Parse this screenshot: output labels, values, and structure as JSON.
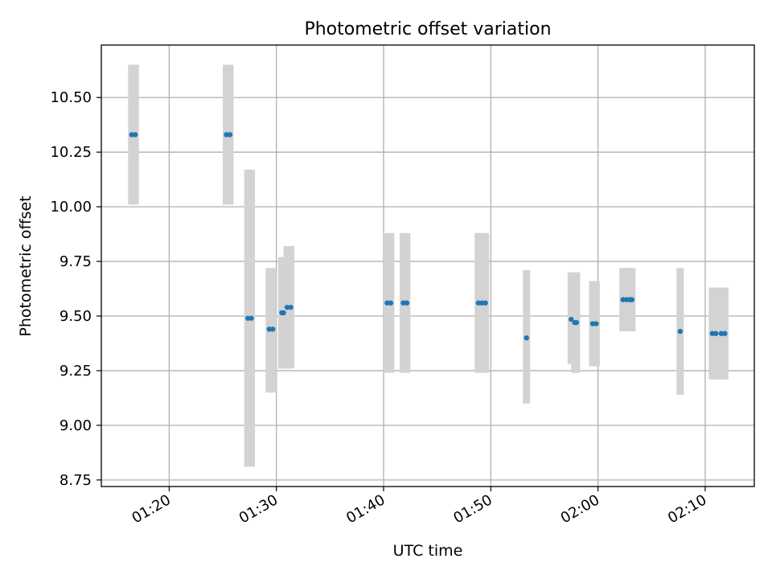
{
  "chart_data": {
    "type": "scatter",
    "title": "Photometric offset variation",
    "xlabel": "UTC time",
    "ylabel": "Photometric offset",
    "xlim": [
      "01:13:40",
      "02:14:35"
    ],
    "ylim": [
      8.72,
      10.74
    ],
    "grid": true,
    "xticks": [
      {
        "time": "01:20:00",
        "label": "01:20"
      },
      {
        "time": "01:30:00",
        "label": "01:30"
      },
      {
        "time": "01:40:00",
        "label": "01:40"
      },
      {
        "time": "01:50:00",
        "label": "01:50"
      },
      {
        "time": "02:00:00",
        "label": "02:00"
      },
      {
        "time": "02:10:00",
        "label": "02:10"
      }
    ],
    "yticks": [
      {
        "value": 8.75,
        "label": "8.75"
      },
      {
        "value": 9.0,
        "label": "9.00"
      },
      {
        "value": 9.25,
        "label": "9.25"
      },
      {
        "value": 9.5,
        "label": "9.50"
      },
      {
        "value": 9.75,
        "label": "9.75"
      },
      {
        "value": 10.0,
        "label": "10.00"
      },
      {
        "value": 10.25,
        "label": "10.25"
      },
      {
        "value": 10.5,
        "label": "10.50"
      }
    ],
    "colors": {
      "point": "#1f77b4",
      "errorbar": "#d3d3d3",
      "grid": "#b0b0b0",
      "axes": "#000000"
    },
    "points": [
      {
        "time": "01:16:30",
        "y": 10.33,
        "ylow": 10.01,
        "yhigh": 10.65
      },
      {
        "time": "01:16:50",
        "y": 10.33,
        "ylow": 10.01,
        "yhigh": 10.65
      },
      {
        "time": "01:25:20",
        "y": 10.33,
        "ylow": 10.01,
        "yhigh": 10.65
      },
      {
        "time": "01:25:40",
        "y": 10.33,
        "ylow": 10.01,
        "yhigh": 10.65
      },
      {
        "time": "01:27:20",
        "y": 9.49,
        "ylow": 8.81,
        "yhigh": 10.17
      },
      {
        "time": "01:27:40",
        "y": 9.49,
        "ylow": 8.81,
        "yhigh": 10.17
      },
      {
        "time": "01:29:20",
        "y": 9.44,
        "ylow": 9.15,
        "yhigh": 9.72
      },
      {
        "time": "01:29:40",
        "y": 9.44,
        "ylow": 9.15,
        "yhigh": 9.72
      },
      {
        "time": "01:30:30",
        "y": 9.515,
        "ylow": 9.26,
        "yhigh": 9.77
      },
      {
        "time": "01:30:40",
        "y": 9.515,
        "ylow": 9.26,
        "yhigh": 9.77
      },
      {
        "time": "01:31:00",
        "y": 9.54,
        "ylow": 9.26,
        "yhigh": 9.82
      },
      {
        "time": "01:31:20",
        "y": 9.54,
        "ylow": 9.26,
        "yhigh": 9.82
      },
      {
        "time": "01:40:20",
        "y": 9.56,
        "ylow": 9.24,
        "yhigh": 9.88
      },
      {
        "time": "01:40:40",
        "y": 9.56,
        "ylow": 9.24,
        "yhigh": 9.88
      },
      {
        "time": "01:41:50",
        "y": 9.56,
        "ylow": 9.24,
        "yhigh": 9.88
      },
      {
        "time": "01:42:10",
        "y": 9.56,
        "ylow": 9.24,
        "yhigh": 9.88
      },
      {
        "time": "01:48:50",
        "y": 9.56,
        "ylow": 9.24,
        "yhigh": 9.88
      },
      {
        "time": "01:49:10",
        "y": 9.56,
        "ylow": 9.24,
        "yhigh": 9.88
      },
      {
        "time": "01:49:30",
        "y": 9.56,
        "ylow": 9.24,
        "yhigh": 9.88
      },
      {
        "time": "01:53:20",
        "y": 9.4,
        "ylow": 9.1,
        "yhigh": 9.71
      },
      {
        "time": "01:57:30",
        "y": 9.485,
        "ylow": 9.28,
        "yhigh": 9.7
      },
      {
        "time": "01:57:50",
        "y": 9.47,
        "ylow": 9.24,
        "yhigh": 9.7
      },
      {
        "time": "01:58:00",
        "y": 9.47,
        "ylow": 9.24,
        "yhigh": 9.7
      },
      {
        "time": "01:59:30",
        "y": 9.465,
        "ylow": 9.27,
        "yhigh": 9.66
      },
      {
        "time": "01:59:50",
        "y": 9.465,
        "ylow": 9.27,
        "yhigh": 9.66
      },
      {
        "time": "02:02:20",
        "y": 9.575,
        "ylow": 9.43,
        "yhigh": 9.72
      },
      {
        "time": "02:02:40",
        "y": 9.575,
        "ylow": 9.43,
        "yhigh": 9.72
      },
      {
        "time": "02:03:00",
        "y": 9.575,
        "ylow": 9.43,
        "yhigh": 9.72
      },
      {
        "time": "02:03:10",
        "y": 9.575,
        "ylow": 9.43,
        "yhigh": 9.72
      },
      {
        "time": "02:07:40",
        "y": 9.43,
        "ylow": 9.14,
        "yhigh": 9.72
      },
      {
        "time": "02:10:40",
        "y": 9.42,
        "ylow": 9.21,
        "yhigh": 9.63
      },
      {
        "time": "02:11:00",
        "y": 9.42,
        "ylow": 9.21,
        "yhigh": 9.63
      },
      {
        "time": "02:11:30",
        "y": 9.42,
        "ylow": 9.21,
        "yhigh": 9.63
      },
      {
        "time": "02:11:50",
        "y": 9.42,
        "ylow": 9.21,
        "yhigh": 9.63
      }
    ]
  }
}
